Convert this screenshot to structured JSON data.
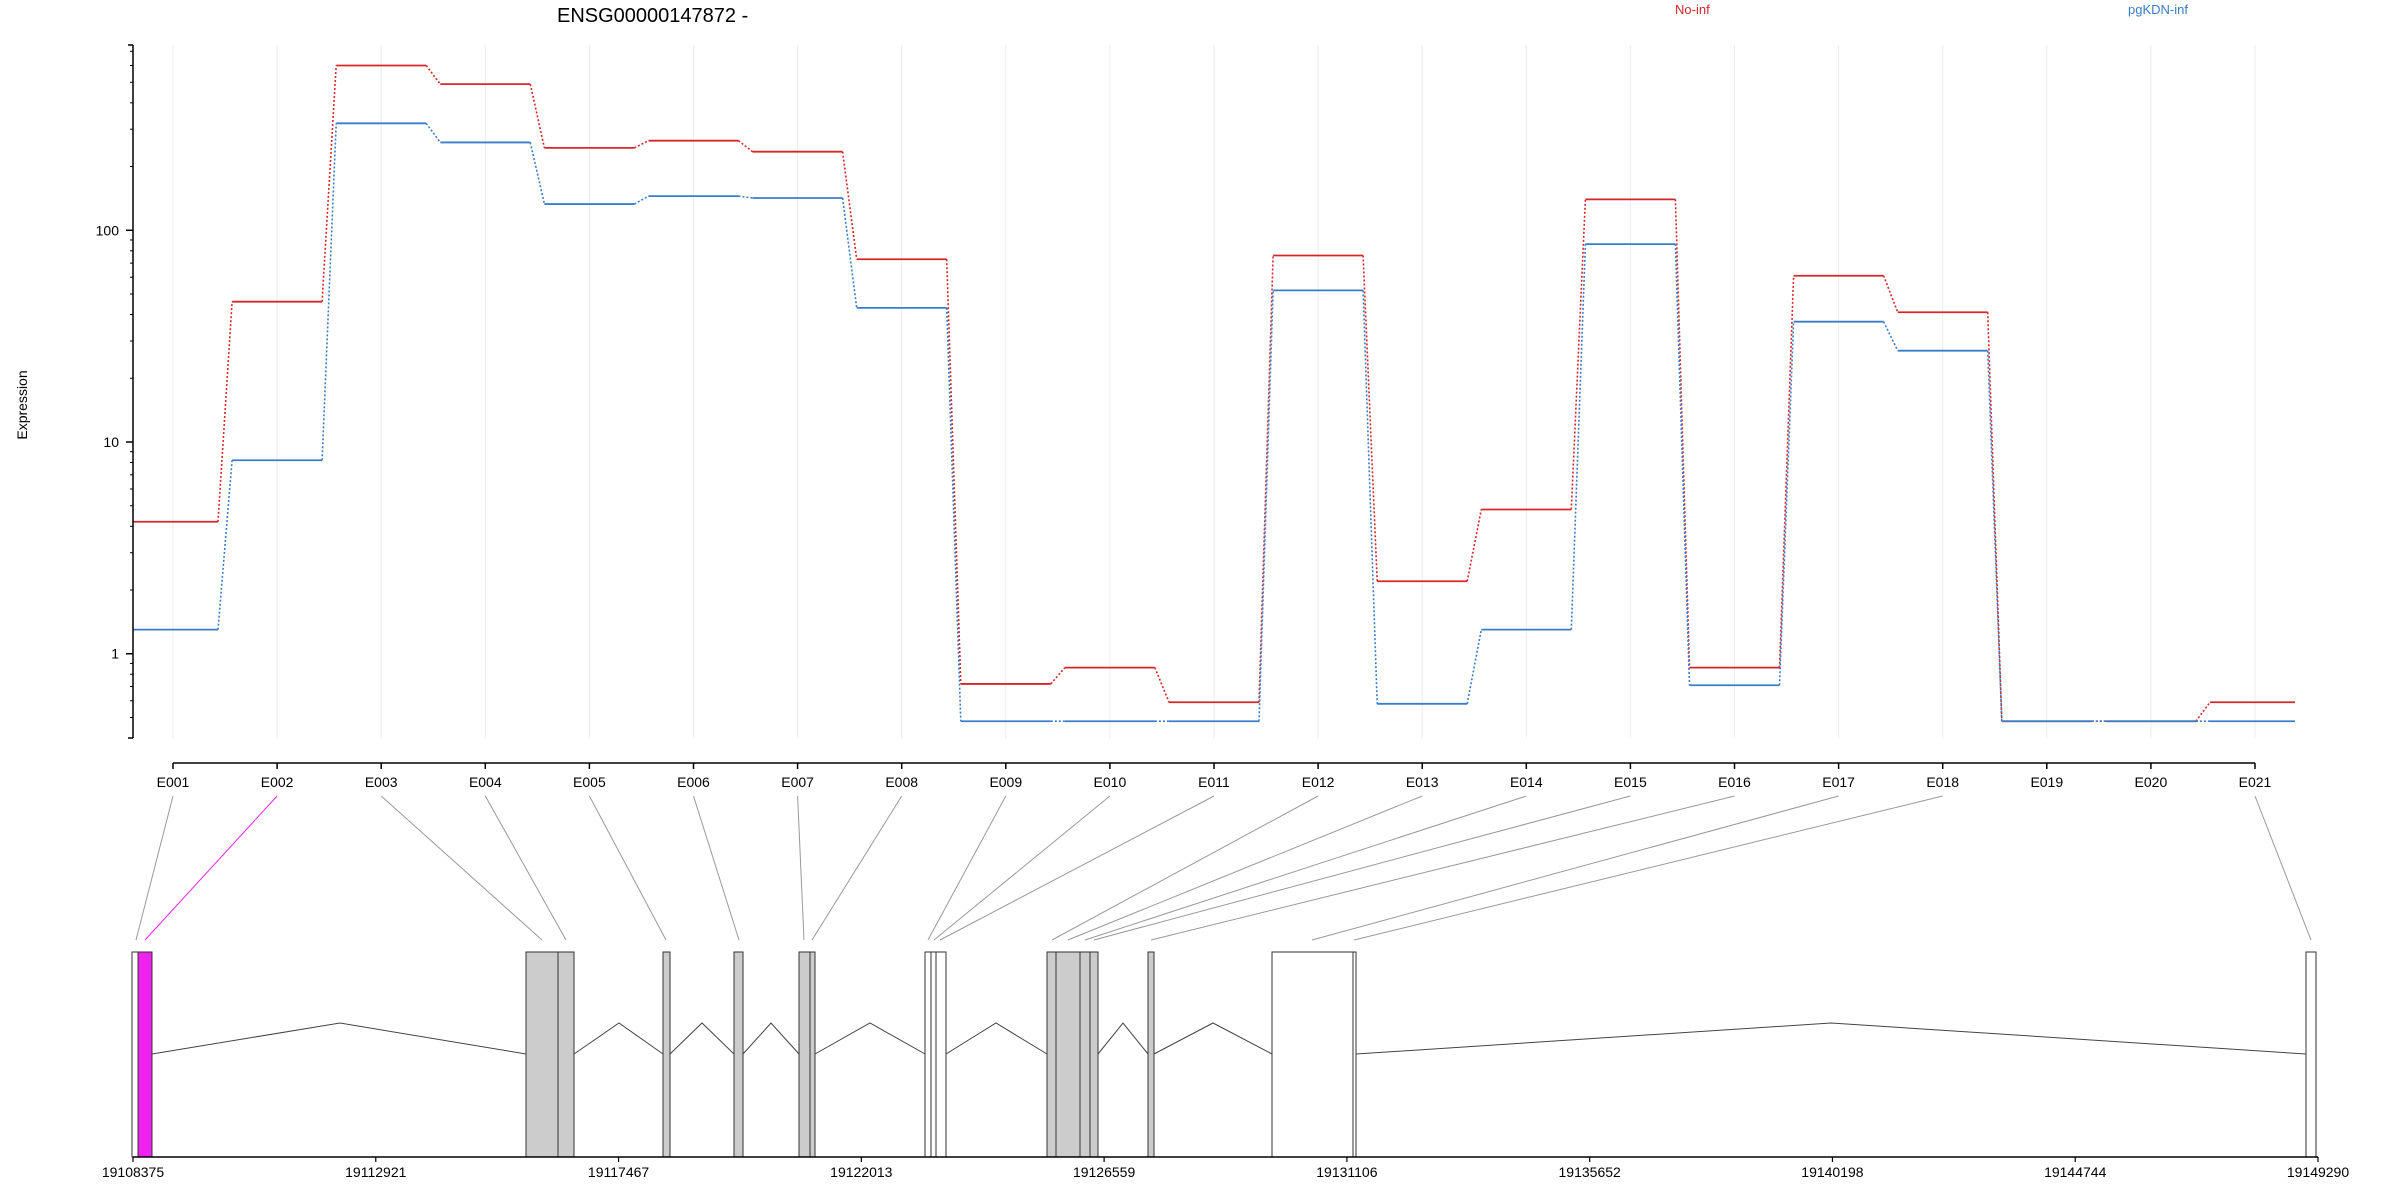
{
  "chart_data": {
    "type": "line",
    "title": "ENSG00000147872 -",
    "xlabel": "",
    "ylabel": "Expression",
    "yscale": "log",
    "ylim": [
      0.4,
      750
    ],
    "yticks": [
      1,
      10,
      100
    ],
    "ytick_labels": [
      "1",
      "10",
      "100"
    ],
    "grid": "vertical",
    "legend_placement": "top-right",
    "categories": [
      "E001",
      "E002",
      "E003",
      "E004",
      "E005",
      "E006",
      "E007",
      "E008",
      "E009",
      "E010",
      "E011",
      "E012",
      "E013",
      "E014",
      "E015",
      "E016",
      "E017",
      "E018",
      "E019",
      "E020",
      "E021"
    ],
    "series": [
      {
        "name": "No-inf",
        "color": "#d62728",
        "values": [
          4.2,
          46,
          600,
          490,
          245,
          265,
          235,
          73,
          0.72,
          0.86,
          0.59,
          76,
          2.2,
          4.8,
          140,
          0.86,
          61,
          41,
          0.48,
          0.48,
          0.59
        ]
      },
      {
        "name": "pgKDN-inf",
        "color": "#3a7dc9",
        "values": [
          1.3,
          8.2,
          320,
          260,
          133,
          145,
          142,
          43,
          0.48,
          0.48,
          0.48,
          52,
          0.58,
          1.3,
          86,
          0.71,
          37,
          27,
          0.48,
          0.48,
          0.48
        ]
      }
    ],
    "gene_model": {
      "coordinate_labels": [
        "19108375",
        "19112921",
        "19117467",
        "19122013",
        "19126559",
        "19131106",
        "19135652",
        "19140198",
        "19144744",
        "19149290"
      ],
      "highlight_color": "#ee22ee",
      "exon_color": "#cccccc"
    }
  }
}
